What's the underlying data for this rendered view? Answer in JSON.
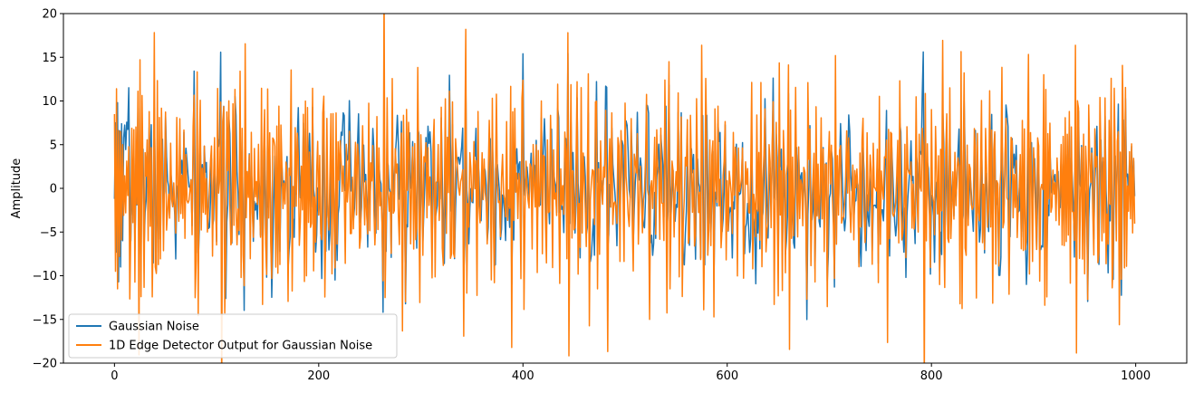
{
  "chart_data": {
    "type": "line",
    "title": "",
    "xlabel": "",
    "ylabel": "Amplitude",
    "xlim": [
      -50,
      1050
    ],
    "ylim": [
      -20,
      20
    ],
    "xticks": [
      0,
      200,
      400,
      600,
      800,
      1000
    ],
    "yticks": [
      -20,
      -15,
      -10,
      -5,
      0,
      5,
      10,
      15,
      20
    ],
    "grid": false,
    "legend_position": "lower-left",
    "n_points": 1000,
    "series": [
      {
        "name": "Gaussian Noise",
        "color": "#1f77b4",
        "std": 5.0,
        "seed": 7,
        "values": [
          -1.2,
          7.5,
          -7.3,
          9.8,
          -10.7,
          6.6,
          -9.0,
          7.4,
          -6.0,
          5.8
        ]
      },
      {
        "name": "1D Edge Detector Output for Gaussian Noise",
        "color": "#ff7f0e",
        "derived_from": "Gaussian Noise",
        "values": [
          8.5,
          -9.5,
          11.4,
          -11.5,
          6.6,
          -7.8,
          6.5,
          -5.9,
          5.0,
          -3.1
        ]
      }
    ]
  },
  "labels": {
    "ylabel": "Amplitude"
  }
}
